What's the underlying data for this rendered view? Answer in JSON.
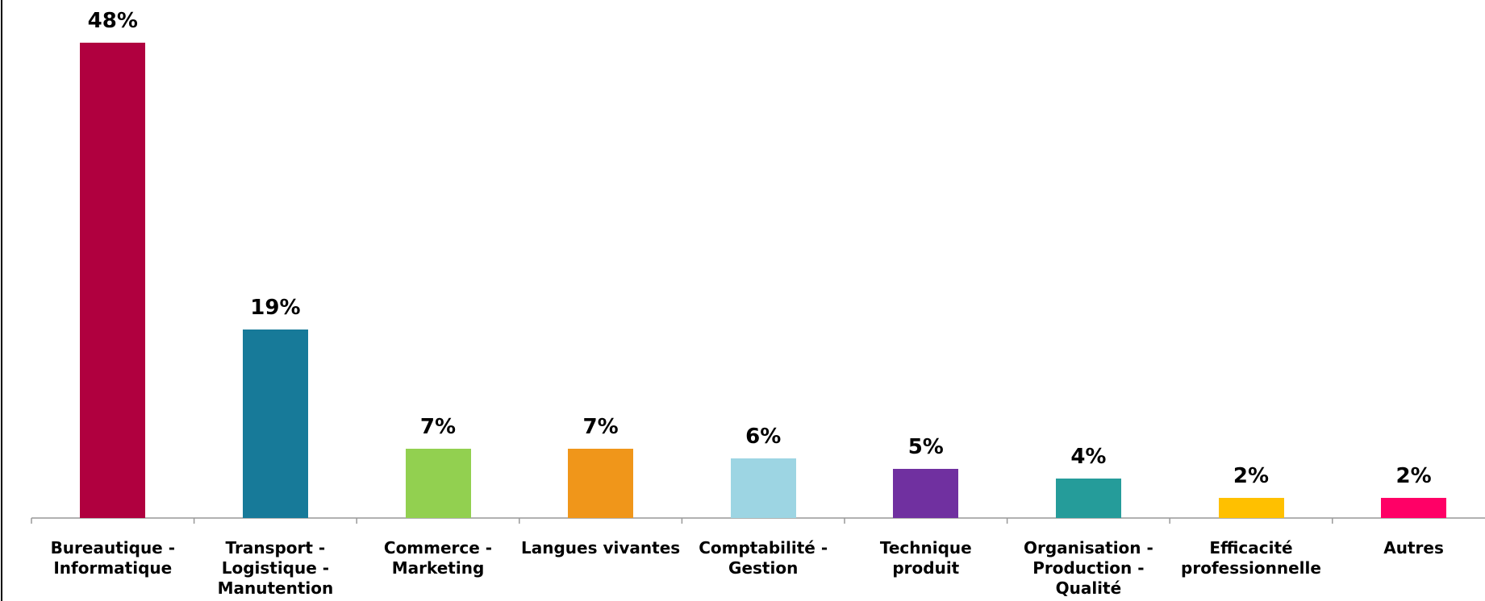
{
  "chart_data": {
    "type": "bar",
    "categories": [
      "Bureautique -\nInformatique",
      "Transport -\nLogistique -\nManutention",
      "Commerce -\nMarketing",
      "Langues vivantes",
      "Comptabilité -\nGestion",
      "Technique produit",
      "Organisation -\nProduction -\nQualité",
      "Efficacité\nprofessionnelle",
      "Autres"
    ],
    "values": [
      48,
      19,
      7,
      7,
      6,
      5,
      4,
      2,
      2
    ],
    "value_labels": [
      "48%",
      "19%",
      "7%",
      "7%",
      "6%",
      "5%",
      "4%",
      "2%",
      "2%"
    ],
    "colors": [
      "#b0003f",
      "#177a99",
      "#92d050",
      "#f0961a",
      "#9dd5e3",
      "#7030a0",
      "#259c9a",
      "#ffc000",
      "#ff0066"
    ]
  }
}
